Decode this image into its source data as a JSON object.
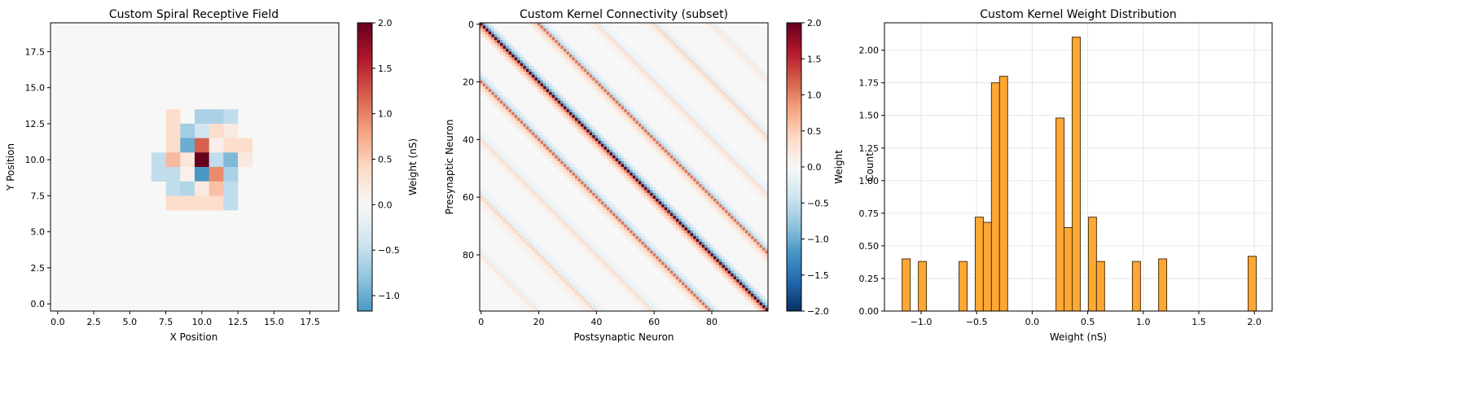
{
  "colorbar_colors": [
    "#053061",
    "#2166ac",
    "#4393c3",
    "#92c5de",
    "#d1e5f0",
    "#f7f7f7",
    "#fddbc7",
    "#f4a582",
    "#d6604d",
    "#b2182b",
    "#67001f"
  ],
  "chart_data": [
    {
      "type": "heatmap",
      "title": "Custom Spiral Receptive Field",
      "xlabel": "X Position",
      "ylabel": "Y Position",
      "xlim": [
        -0.5,
        19.5
      ],
      "ylim": [
        -0.5,
        19.5
      ],
      "xticks": [
        0.0,
        2.5,
        5.0,
        7.5,
        10.0,
        12.5,
        15.0,
        17.5
      ],
      "xtick_labels": [
        "0.0",
        "2.5",
        "5.0",
        "7.5",
        "10.0",
        "12.5",
        "15.0",
        "17.5"
      ],
      "yticks": [
        0.0,
        2.5,
        5.0,
        7.5,
        10.0,
        12.5,
        15.0,
        17.5
      ],
      "ytick_labels": [
        "0.0",
        "2.5",
        "5.0",
        "7.5",
        "10.0",
        "12.5",
        "15.0",
        "17.5"
      ],
      "background_value": 0.0,
      "vmin": -1.17,
      "vmax": 2.0,
      "colorbar_label": "Weight (nS)",
      "colorbar_ticks": [
        -1.0,
        -0.5,
        0.0,
        0.5,
        1.0,
        1.5,
        2.0
      ],
      "colorbar_tick_labels": [
        "−1.0",
        "−0.5",
        "0.0",
        "0.5",
        "1.0",
        "1.5",
        "2.0"
      ],
      "cells": [
        {
          "x": 8,
          "y": 13,
          "v": 0.37
        },
        {
          "x": 10,
          "y": 13,
          "v": -0.65
        },
        {
          "x": 11,
          "y": 13,
          "v": -0.65
        },
        {
          "x": 12,
          "y": 13,
          "v": -0.5
        },
        {
          "x": 8,
          "y": 12,
          "v": 0.37
        },
        {
          "x": 9,
          "y": 12,
          "v": -0.7
        },
        {
          "x": 10,
          "y": 12,
          "v": -0.4
        },
        {
          "x": 11,
          "y": 12,
          "v": 0.37
        },
        {
          "x": 12,
          "y": 12,
          "v": 0.2
        },
        {
          "x": 8,
          "y": 11,
          "v": 0.37
        },
        {
          "x": 9,
          "y": 11,
          "v": -1.0
        },
        {
          "x": 10,
          "y": 11,
          "v": 1.2
        },
        {
          "x": 11,
          "y": 11,
          "v": 0.1
        },
        {
          "x": 12,
          "y": 11,
          "v": 0.37
        },
        {
          "x": 13,
          "y": 11,
          "v": 0.37
        },
        {
          "x": 7,
          "y": 10,
          "v": -0.5
        },
        {
          "x": 8,
          "y": 10,
          "v": 0.65
        },
        {
          "x": 9,
          "y": 10,
          "v": 0.25
        },
        {
          "x": 10,
          "y": 10,
          "v": 2.0
        },
        {
          "x": 11,
          "y": 10,
          "v": -0.5
        },
        {
          "x": 12,
          "y": 10,
          "v": -0.9
        },
        {
          "x": 13,
          "y": 10,
          "v": 0.2
        },
        {
          "x": 7,
          "y": 9,
          "v": -0.5
        },
        {
          "x": 8,
          "y": 9,
          "v": -0.5
        },
        {
          "x": 9,
          "y": 9,
          "v": 0.1
        },
        {
          "x": 10,
          "y": 9,
          "v": -1.17
        },
        {
          "x": 11,
          "y": 9,
          "v": 0.95
        },
        {
          "x": 12,
          "y": 9,
          "v": -0.65
        },
        {
          "x": 8,
          "y": 8,
          "v": -0.5
        },
        {
          "x": 9,
          "y": 8,
          "v": -0.6
        },
        {
          "x": 10,
          "y": 8,
          "v": 0.2
        },
        {
          "x": 11,
          "y": 8,
          "v": 0.6
        },
        {
          "x": 12,
          "y": 8,
          "v": -0.5
        },
        {
          "x": 8,
          "y": 7,
          "v": 0.37
        },
        {
          "x": 9,
          "y": 7,
          "v": 0.37
        },
        {
          "x": 10,
          "y": 7,
          "v": 0.37
        },
        {
          "x": 11,
          "y": 7,
          "v": 0.37
        },
        {
          "x": 12,
          "y": 7,
          "v": -0.5
        }
      ]
    },
    {
      "type": "heatmap",
      "title": "Custom Kernel Connectivity (subset)",
      "xlabel": "Postsynaptic Neuron",
      "ylabel": "Presynaptic Neuron",
      "n": 100,
      "block_size": 20,
      "xticks": [
        0,
        20,
        40,
        60,
        80
      ],
      "xtick_labels": [
        "0",
        "20",
        "40",
        "60",
        "80"
      ],
      "yticks": [
        0,
        20,
        40,
        60,
        80
      ],
      "ytick_labels": [
        "0",
        "20",
        "40",
        "60",
        "80"
      ],
      "vmin": -2.0,
      "vmax": 2.0,
      "colorbar_label": "Weight",
      "colorbar_ticks": [
        -2.0,
        -1.5,
        -1.0,
        -0.5,
        0.0,
        0.5,
        1.0,
        1.5,
        2.0
      ],
      "colorbar_tick_labels": [
        "−2.0",
        "−1.5",
        "−1.0",
        "−0.5",
        "0.0",
        "0.5",
        "1.0",
        "1.5",
        "2.0"
      ],
      "kernel_offsets": [
        {
          "d": 0,
          "v": 2.0
        },
        {
          "d": 1,
          "v": -1.0
        },
        {
          "d": -1,
          "v": 0.9
        },
        {
          "d": 2,
          "v": -0.5
        },
        {
          "d": -2,
          "v": 0.5
        },
        {
          "d": 3,
          "v": -0.3
        },
        {
          "d": -3,
          "v": 0.3
        }
      ],
      "block_weights": [
        {
          "k": 0,
          "w": 1.0
        },
        {
          "k": 1,
          "w": 0.55
        },
        {
          "k": -1,
          "w": 0.55
        },
        {
          "k": 2,
          "w": 0.18
        },
        {
          "k": -2,
          "w": 0.18
        },
        {
          "k": 3,
          "w": 0.22
        },
        {
          "k": -3,
          "w": 0.22
        },
        {
          "k": 4,
          "w": 0.12
        },
        {
          "k": -4,
          "w": 0.12
        }
      ]
    },
    {
      "type": "bar",
      "title": "Custom Kernel Weight Distribution",
      "xlabel": "Weight (nS)",
      "ylabel": "Count",
      "xlim": [
        -1.33,
        2.16
      ],
      "ylim": [
        0,
        2.21
      ],
      "xticks": [
        -1.0,
        -0.5,
        0.0,
        0.5,
        1.0,
        1.5,
        2.0
      ],
      "xtick_labels": [
        "−1.0",
        "−0.5",
        "0.0",
        "0.5",
        "1.0",
        "1.5",
        "2.0"
      ],
      "yticks": [
        0.0,
        0.25,
        0.5,
        0.75,
        1.0,
        1.25,
        1.5,
        1.75,
        2.0
      ],
      "ytick_labels": [
        "0.00",
        "0.25",
        "0.50",
        "0.75",
        "1.00",
        "1.25",
        "1.50",
        "1.75",
        "2.00"
      ],
      "grid": true,
      "bar_color": "#ffa733",
      "bars": [
        {
          "x0": -1.171,
          "x1": -1.098,
          "count": 0.4
        },
        {
          "x0": -1.025,
          "x1": -0.952,
          "count": 0.38
        },
        {
          "x0": -0.659,
          "x1": -0.586,
          "count": 0.38
        },
        {
          "x0": -0.513,
          "x1": -0.44,
          "count": 0.72
        },
        {
          "x0": -0.44,
          "x1": -0.367,
          "count": 0.68
        },
        {
          "x0": -0.367,
          "x1": -0.294,
          "count": 1.75
        },
        {
          "x0": -0.294,
          "x1": -0.221,
          "count": 1.8
        },
        {
          "x0": 0.214,
          "x1": 0.287,
          "count": 1.48
        },
        {
          "x0": 0.287,
          "x1": 0.36,
          "count": 0.64
        },
        {
          "x0": 0.36,
          "x1": 0.433,
          "count": 2.1
        },
        {
          "x0": 0.506,
          "x1": 0.579,
          "count": 0.72
        },
        {
          "x0": 0.579,
          "x1": 0.652,
          "count": 0.38
        },
        {
          "x0": 0.902,
          "x1": 0.975,
          "count": 0.38
        },
        {
          "x0": 1.138,
          "x1": 1.211,
          "count": 0.4
        },
        {
          "x0": 1.944,
          "x1": 2.017,
          "count": 0.42
        }
      ]
    }
  ]
}
